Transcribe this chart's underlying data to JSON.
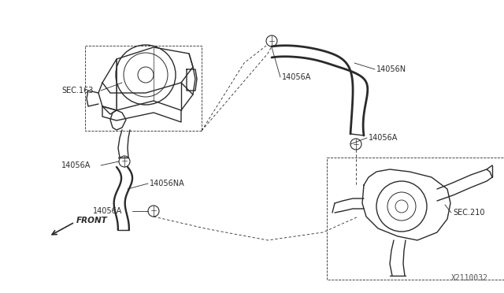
{
  "bg_color": "#ffffff",
  "line_color": "#2a2a2a",
  "label_color": "#2a2a2a",
  "fig_width": 6.4,
  "fig_height": 3.72,
  "dpi": 100,
  "labels": {
    "sec163": "SEC.163",
    "sec210": "SEC.210",
    "l14056A_1": "14056A",
    "l14056A_2": "14056A",
    "l14056A_3": "14056A",
    "l14056A_4": "14056A",
    "l14056NA": "14056NA",
    "l14056N": "14056N",
    "diagram_code": "X2110032",
    "front": "FRONT"
  }
}
